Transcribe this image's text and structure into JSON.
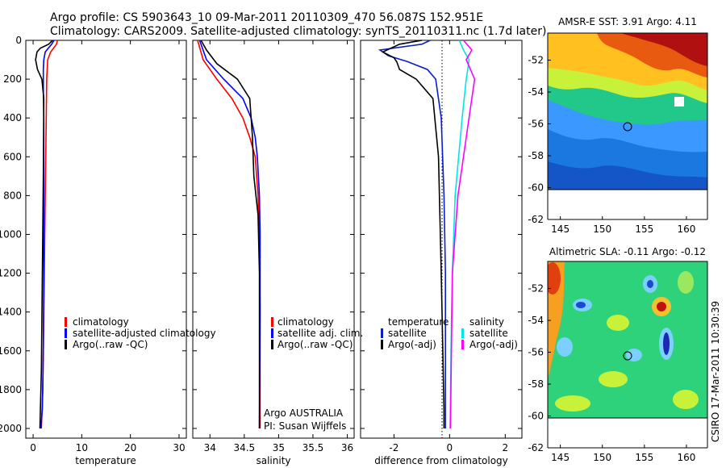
{
  "header": {
    "line1": "Argo profile: CS 5903643_10 09-Mar-2011 20110309_470 56.087S 152.951E",
    "line2": "Climatology: CARS2009. Satellite-adjusted climatology: synTS_20110311.nc (1.7d later)"
  },
  "side_label": "CSIRO 17-Mar-2011 10:30:39",
  "colors": {
    "red": "#ff0000",
    "blue": "#0000ff",
    "navy": "#0a1fc8",
    "black": "#000000",
    "cyan": "#00e5e5",
    "magenta": "#ff00ff"
  },
  "chart_data": [
    {
      "type": "line",
      "xlabel": "temperature",
      "ylabel": "",
      "xlim": [
        -1.5,
        31.5
      ],
      "ylim": [
        2050,
        0
      ],
      "xticks": [
        0,
        10,
        20,
        30
      ],
      "yticks": [
        0,
        200,
        400,
        600,
        800,
        1000,
        1200,
        1400,
        1600,
        1800,
        2000
      ],
      "legend": {
        "placement": "lower-right",
        "entries": [
          {
            "label": "climatology",
            "color": "#ff0000"
          },
          {
            "label": "satellite-adjusted climatology",
            "color": "#0000ff"
          },
          {
            "label": "Argo(..raw -QC)",
            "color": "#000000"
          }
        ]
      },
      "series": [
        {
          "name": "climatology",
          "color": "#ff0000",
          "x": [
            5.0,
            4.8,
            3.6,
            3.0,
            2.9,
            2.8,
            2.7,
            2.6,
            2.5,
            2.4,
            2.2,
            2.0,
            1.7
          ],
          "y": [
            0,
            20,
            60,
            100,
            150,
            200,
            400,
            600,
            800,
            1000,
            1400,
            1800,
            2000
          ]
        },
        {
          "name": "satellite-adjusted climatology",
          "color": "#0000ff",
          "x": [
            4.3,
            3.8,
            2.5,
            2.2,
            2.1,
            2.1,
            2.2,
            2.2,
            2.2,
            2.1,
            1.9,
            1.6
          ],
          "y": [
            0,
            20,
            60,
            100,
            150,
            250,
            400,
            800,
            1200,
            1600,
            1900,
            2000
          ]
        },
        {
          "name": "Argo(..raw -QC)",
          "color": "#000000",
          "x": [
            4.0,
            3.2,
            1.5,
            0.8,
            0.5,
            0.9,
            1.8,
            2.2,
            2.1,
            1.9,
            1.7,
            1.4
          ],
          "y": [
            0,
            20,
            40,
            60,
            100,
            150,
            200,
            300,
            700,
            1200,
            1700,
            2000
          ]
        }
      ]
    },
    {
      "type": "line",
      "xlabel": "salinity",
      "ylabel": "",
      "xlim": [
        33.75,
        36.1
      ],
      "ylim": [
        2050,
        0
      ],
      "xticks": [
        34,
        34.5,
        35,
        35.5,
        36
      ],
      "legend": {
        "placement": "lower-right",
        "entries": [
          {
            "label": "climatology",
            "color": "#ff0000"
          },
          {
            "label": "satellite adj. clim.",
            "color": "#0000ff"
          },
          {
            "label": "Argo(..raw -QC)",
            "color": "#000000"
          }
        ]
      },
      "annotations": [
        "Argo AUSTRALIA",
        "PI: Susan Wijffels"
      ],
      "series": [
        {
          "name": "climatology",
          "color": "#ff0000",
          "x": [
            33.82,
            33.9,
            34.1,
            34.32,
            34.48,
            34.58,
            34.66,
            34.7,
            34.72,
            34.73,
            34.73
          ],
          "y": [
            0,
            100,
            200,
            300,
            400,
            500,
            600,
            800,
            1000,
            1400,
            2000
          ]
        },
        {
          "name": "satellite adj. clim.",
          "color": "#0000ff",
          "x": [
            33.85,
            33.95,
            34.2,
            34.48,
            34.6,
            34.66,
            34.69,
            34.72,
            34.73,
            34.73,
            34.72
          ],
          "y": [
            0,
            100,
            200,
            300,
            400,
            500,
            600,
            800,
            1000,
            1400,
            2000
          ]
        },
        {
          "name": "Argo(..raw -QC)",
          "color": "#000000",
          "x": [
            33.87,
            33.95,
            34.1,
            34.4,
            34.58,
            34.62,
            34.64,
            34.7,
            34.72,
            34.72
          ],
          "y": [
            0,
            50,
            120,
            200,
            300,
            500,
            700,
            900,
            1200,
            2000
          ]
        }
      ]
    },
    {
      "type": "line",
      "xlabel": "difference from climatology",
      "ylabel": "",
      "xlim": [
        -3.2,
        2.6
      ],
      "ylim": [
        2050,
        0
      ],
      "xticks": [
        -2,
        0,
        2
      ],
      "legend": {
        "placement": "lower-center",
        "groups": [
          {
            "title": "temperature",
            "entries": [
              {
                "label": "satellite",
                "color": "#0a1fc8"
              },
              {
                "label": "Argo(-adj)",
                "color": "#000000"
              }
            ]
          },
          {
            "title": "salinity",
            "entries": [
              {
                "label": "satellite",
                "color": "#00e5e5"
              },
              {
                "label": "Argo(-adj)",
                "color": "#ff00ff"
              }
            ]
          }
        ]
      },
      "series": [
        {
          "name": "temperature satellite",
          "color": "#0a1fc8",
          "x": [
            -0.7,
            -1.0,
            -2.5,
            -2.2,
            -1.5,
            -0.8,
            -0.5,
            -0.3,
            -0.2,
            -0.15,
            -0.15,
            -0.15
          ],
          "y": [
            0,
            20,
            50,
            80,
            110,
            150,
            200,
            400,
            800,
            1200,
            1600,
            2000
          ]
        },
        {
          "name": "temperature Argo(-adj)",
          "color": "#000000",
          "x": [
            -1.0,
            -1.8,
            -2.4,
            -2.0,
            -1.9,
            -1.8,
            -1.2,
            -0.6,
            -0.4,
            -0.3,
            -0.2,
            -0.2
          ],
          "y": [
            0,
            20,
            60,
            90,
            110,
            150,
            200,
            300,
            600,
            1200,
            1900,
            2000
          ]
        },
        {
          "name": "salinity satellite",
          "color": "#00e5e5",
          "x": [
            0.35,
            0.5,
            0.7,
            0.65,
            0.6,
            0.45,
            0.2,
            0.1,
            0.05,
            0.02
          ],
          "y": [
            0,
            50,
            100,
            150,
            200,
            400,
            800,
            1200,
            1600,
            2000
          ]
        },
        {
          "name": "salinity Argo(-adj)",
          "color": "#ff00ff",
          "x": [
            0.5,
            0.8,
            0.6,
            0.9,
            0.8,
            0.6,
            0.3,
            0.1,
            0.03
          ],
          "y": [
            0,
            50,
            100,
            200,
            300,
            500,
            800,
            1200,
            2000
          ]
        }
      ]
    },
    {
      "type": "heatmap",
      "title": "AMSR-E SST: 3.91 Argo: 4.11",
      "xlim": [
        143.5,
        162.5
      ],
      "ylim": [
        -62,
        -50.3
      ],
      "xticks": [
        145,
        150,
        155,
        160
      ],
      "yticks": [
        -52,
        -54,
        -56,
        -58,
        -60,
        -62
      ],
      "data_extent_lat": [
        -60,
        -50.3
      ],
      "marker": {
        "lon": 152.95,
        "lat": -56.09
      }
    },
    {
      "type": "heatmap",
      "title": "Altimetric SLA: -0.11 Argo: -0.12",
      "xlim": [
        143.5,
        162.5
      ],
      "ylim": [
        -62,
        -50.3
      ],
      "xticks": [
        145,
        150,
        155,
        160
      ],
      "yticks": [
        -52,
        -54,
        -56,
        -58,
        -60,
        -62
      ],
      "data_extent_lat": [
        -60,
        -50.3
      ],
      "marker": {
        "lon": 152.95,
        "lat": -56.09
      }
    }
  ]
}
